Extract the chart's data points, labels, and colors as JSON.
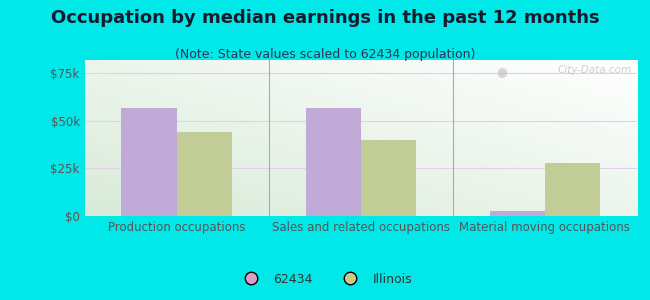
{
  "title": "Occupation by median earnings in the past 12 months",
  "subtitle": "(Note: State values scaled to 62434 population)",
  "categories": [
    "Production occupations",
    "Sales and related occupations",
    "Material moving occupations"
  ],
  "values_62434": [
    57000,
    57000,
    2500
  ],
  "values_illinois": [
    44000,
    40000,
    28000
  ],
  "bar_color_62434": "#c0aad8",
  "bar_color_illinois": "#c2cc96",
  "background_outer": "#00e8e8",
  "ylim": [
    0,
    82000
  ],
  "yticks": [
    0,
    25000,
    50000,
    75000
  ],
  "ytick_labels": [
    "$0",
    "$25k",
    "$50k",
    "$75k"
  ],
  "legend_labels": [
    "62434",
    "Illinois"
  ],
  "legend_colors": [
    "#d8a0c8",
    "#c8cc88"
  ],
  "bar_width": 0.3,
  "watermark": "City-Data.com",
  "title_fontsize": 13,
  "subtitle_fontsize": 9,
  "tick_fontsize": 8.5,
  "legend_fontsize": 9,
  "grid_color": "#e0d0e8",
  "separator_color": "#aaaaaa"
}
